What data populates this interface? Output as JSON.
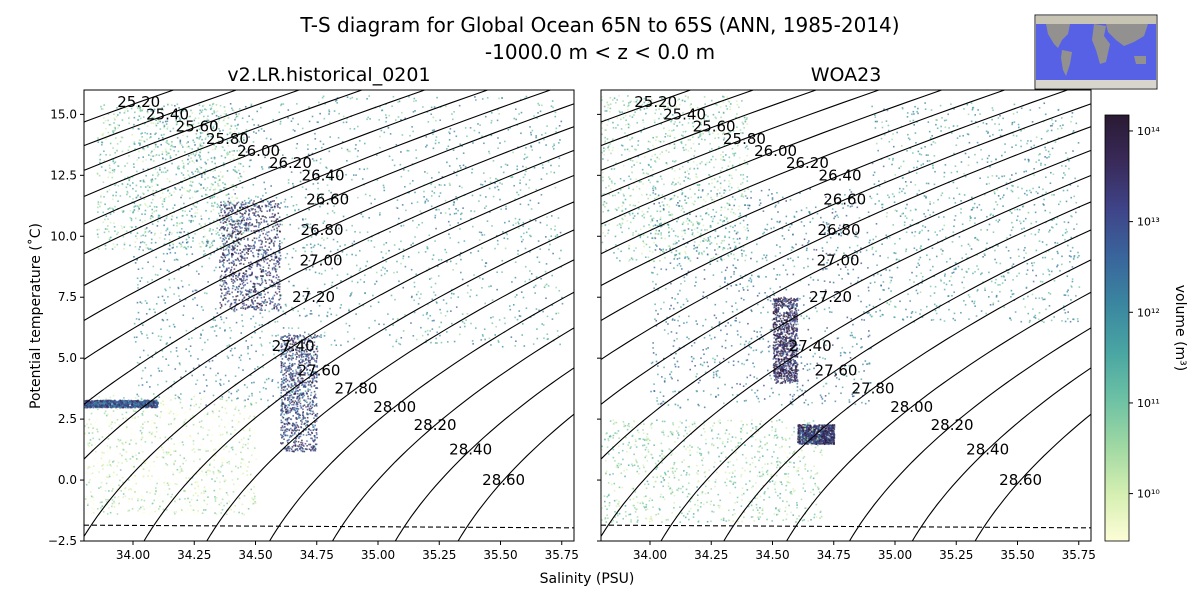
{
  "title_line1": "T-S diagram for Global Ocean 65N to 65S (ANN, 1985-2014)",
  "title_line2": "-1000.0 m < z < 0.0 m",
  "chart_data": {
    "type": "heatmap",
    "xlabel": "Salinity (PSU)",
    "ylabel": "Potential temperature (˚C)",
    "xlim": [
      33.8,
      35.8
    ],
    "ylim": [
      -2.5,
      16.0
    ],
    "xticks": [
      "34.00",
      "34.25",
      "34.50",
      "34.75",
      "35.00",
      "35.25",
      "35.50",
      "35.75"
    ],
    "yticks": [
      "−2.5",
      "0.0",
      "2.5",
      "5.0",
      "7.5",
      "10.0",
      "12.5",
      "15.0"
    ],
    "colorbar": {
      "label": "volume (m³)",
      "scale": "log",
      "range": [
        3000000000.0,
        150000000000000.0
      ],
      "ticks": [
        {
          "value": 10000000000.0,
          "label": "10¹⁰"
        },
        {
          "value": 100000000000.0,
          "label": "10¹¹"
        },
        {
          "value": 1000000000000.0,
          "label": "10¹²"
        },
        {
          "value": 10000000000000.0,
          "label": "10¹³"
        },
        {
          "value": 100000000000000.0,
          "label": "10¹⁴"
        }
      ],
      "colormap": [
        "#fdfdd7",
        "#d5efb1",
        "#9fd8a3",
        "#6cc1a4",
        "#49a5a2",
        "#3a86a0",
        "#39659c",
        "#3f4489",
        "#392a5a",
        "#2a1a33"
      ]
    },
    "freezing_line": {
      "style": "dashed",
      "T_at_34": -1.86,
      "T_at_35_8": -1.96
    },
    "density_contours": [
      "25.20",
      "25.40",
      "25.60",
      "25.80",
      "26.00",
      "26.20",
      "26.40",
      "26.60",
      "26.80",
      "27.00",
      "27.20",
      "27.40",
      "27.60",
      "27.80",
      "28.00",
      "28.20",
      "28.40",
      "28.60"
    ],
    "panels": [
      {
        "name": "v2.LR.historical_0201",
        "clusters": [
          {
            "S": [
              33.85,
              34.45
            ],
            "T": [
              9.5,
              15.5
            ],
            "level": 0.3
          },
          {
            "S": [
              34.0,
              34.75
            ],
            "T": [
              3.0,
              15.5
            ],
            "level": 0.5
          },
          {
            "S": [
              34.35,
              34.6
            ],
            "T": [
              7.0,
              11.5
            ],
            "level": 0.8
          },
          {
            "S": [
              34.6,
              34.75
            ],
            "T": [
              1.2,
              6.0
            ],
            "level": 0.75
          },
          {
            "S": [
              34.75,
              35.75
            ],
            "T": [
              5.5,
              15.8
            ],
            "level": 0.45
          },
          {
            "S": [
              33.8,
              34.5
            ],
            "T": [
              -1.4,
              3.5
            ],
            "level": 0.15
          },
          {
            "S": [
              33.8,
              34.1
            ],
            "T": [
              3.0,
              3.3
            ],
            "level": 0.7
          }
        ]
      },
      {
        "name": "WOA23",
        "clusters": [
          {
            "S": [
              33.8,
              34.4
            ],
            "T": [
              9.0,
              15.8
            ],
            "level": 0.3
          },
          {
            "S": [
              34.0,
              34.9
            ],
            "T": [
              3.0,
              12.0
            ],
            "level": 0.55
          },
          {
            "S": [
              34.5,
              34.6
            ],
            "T": [
              4.0,
              7.5
            ],
            "level": 0.85
          },
          {
            "S": [
              34.6,
              34.75
            ],
            "T": [
              1.5,
              2.3
            ],
            "level": 0.8
          },
          {
            "S": [
              34.9,
              35.75
            ],
            "T": [
              6.5,
              15.5
            ],
            "level": 0.45
          },
          {
            "S": [
              33.8,
              34.7
            ],
            "T": [
              -1.7,
              2.5
            ],
            "level": 0.25
          }
        ]
      }
    ]
  },
  "inset_map": {
    "land": "#9e9a80",
    "ocean": "#5661e6"
  }
}
